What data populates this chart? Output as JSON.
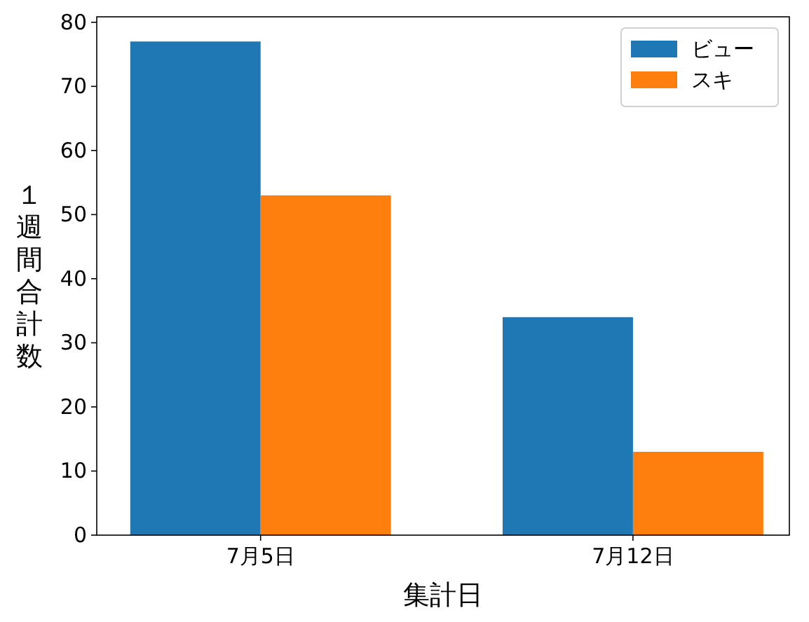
{
  "chart_data": {
    "type": "bar",
    "xlabel": "集計日",
    "ylabel": "１週間合計数",
    "categories": [
      "7月5日",
      "7月12日"
    ],
    "series": [
      {
        "name": "ビュー",
        "color": "#1f77b4",
        "values": [
          77,
          34
        ]
      },
      {
        "name": "スキ",
        "color": "#ff7f0e",
        "values": [
          53,
          13
        ]
      }
    ],
    "ylim": [
      0,
      80.85
    ],
    "yticks": [
      0,
      10,
      20,
      30,
      40,
      50,
      60,
      70,
      80
    ],
    "grid": false,
    "legend": "top right"
  }
}
